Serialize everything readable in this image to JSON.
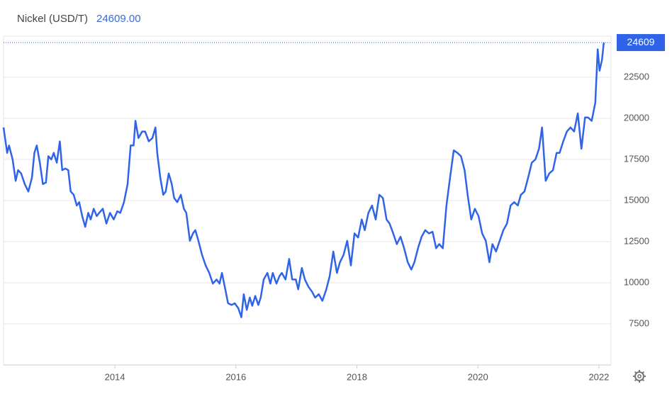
{
  "chart_data": {
    "type": "line",
    "title": "Nickel (USD/T)",
    "current_value_label": "24609.00",
    "last_value_badge": "24609",
    "color": "#2f63e8",
    "grid": true,
    "xlim": [
      2012.16,
      2022.2
    ],
    "xticks": [
      2014,
      2016,
      2018,
      2020,
      2022
    ],
    "ylim": [
      5000,
      25000
    ],
    "yticks": [
      7500,
      10000,
      12500,
      15000,
      17500,
      20000,
      22500
    ],
    "x": [
      2012.16,
      2012.22,
      2012.25,
      2012.31,
      2012.36,
      2012.4,
      2012.45,
      2012.51,
      2012.57,
      2012.63,
      2012.67,
      2012.71,
      2012.76,
      2012.81,
      2012.86,
      2012.9,
      2012.95,
      2012.99,
      2013.04,
      2013.09,
      2013.13,
      2013.18,
      2013.23,
      2013.27,
      2013.32,
      2013.37,
      2013.41,
      2013.46,
      2013.51,
      2013.56,
      2013.6,
      2013.65,
      2013.7,
      2013.74,
      2013.8,
      2013.86,
      2013.92,
      2013.98,
      2014.04,
      2014.09,
      2014.15,
      2014.21,
      2014.26,
      2014.31,
      2014.34,
      2014.39,
      2014.45,
      2014.5,
      2014.56,
      2014.62,
      2014.67,
      2014.7,
      2014.75,
      2014.8,
      2014.84,
      2014.89,
      2014.94,
      2014.98,
      2015.03,
      2015.09,
      2015.14,
      2015.18,
      2015.24,
      2015.29,
      2015.33,
      2015.38,
      2015.44,
      2015.5,
      2015.56,
      2015.62,
      2015.68,
      2015.73,
      2015.77,
      2015.83,
      2015.87,
      2015.93,
      2015.98,
      2016.04,
      2016.09,
      2016.13,
      2016.18,
      2016.23,
      2016.27,
      2016.32,
      2016.37,
      2016.41,
      2016.46,
      2016.52,
      2016.57,
      2016.61,
      2016.67,
      2016.72,
      2016.76,
      2016.82,
      2016.88,
      2016.93,
      2016.99,
      2017.03,
      2017.09,
      2017.14,
      2017.2,
      2017.26,
      2017.31,
      2017.37,
      2017.43,
      2017.49,
      2017.55,
      2017.61,
      2017.67,
      2017.72,
      2017.78,
      2017.84,
      2017.9,
      2017.96,
      2018.02,
      2018.08,
      2018.13,
      2018.19,
      2018.25,
      2018.31,
      2018.37,
      2018.43,
      2018.49,
      2018.54,
      2018.6,
      2018.66,
      2018.72,
      2018.78,
      2018.84,
      2018.9,
      2018.95,
      2019.01,
      2019.07,
      2019.13,
      2019.19,
      2019.25,
      2019.31,
      2019.36,
      2019.42,
      2019.48,
      2019.54,
      2019.6,
      2019.66,
      2019.72,
      2019.78,
      2019.83,
      2019.89,
      2019.95,
      2020.01,
      2020.07,
      2020.13,
      2020.19,
      2020.24,
      2020.3,
      2020.36,
      2020.42,
      2020.48,
      2020.54,
      2020.6,
      2020.66,
      2020.71,
      2020.77,
      2020.83,
      2020.89,
      2020.95,
      2021.01,
      2021.06,
      2021.12,
      2021.18,
      2021.24,
      2021.3,
      2021.35,
      2021.41,
      2021.47,
      2021.53,
      2021.59,
      2021.65,
      2021.71,
      2021.77,
      2021.82,
      2021.88,
      2021.94,
      2021.98,
      2022.01,
      2022.05,
      2022.08
    ],
    "values": [
      19450,
      17900,
      18350,
      17500,
      16200,
      16850,
      16650,
      16000,
      15550,
      16400,
      17900,
      18350,
      17300,
      16000,
      16100,
      17700,
      17500,
      17900,
      17300,
      18600,
      16850,
      16950,
      16850,
      15550,
      15350,
      14700,
      14900,
      14050,
      13400,
      14250,
      13850,
      14500,
      14050,
      14250,
      14500,
      13600,
      14250,
      13850,
      14350,
      14250,
      14900,
      16000,
      18350,
      18350,
      19850,
      18800,
      19200,
      19200,
      18600,
      18800,
      19450,
      17900,
      16400,
      15350,
      15550,
      16650,
      16000,
      15150,
      14900,
      15350,
      14500,
      14250,
      12550,
      13000,
      13200,
      12550,
      11700,
      11050,
      10600,
      9950,
      10200,
      9950,
      10600,
      9500,
      8750,
      8650,
      8750,
      8450,
      7900,
      9300,
      8350,
      9100,
      8600,
      9200,
      8650,
      9100,
      10200,
      10600,
      9950,
      10600,
      9950,
      10400,
      10600,
      10200,
      11450,
      10200,
      10200,
      9600,
      10900,
      10200,
      9750,
      9450,
      9100,
      9300,
      8900,
      9550,
      10400,
      11900,
      10600,
      11250,
      11700,
      12550,
      11050,
      13000,
      12750,
      13850,
      13200,
      14250,
      14700,
      13850,
      15350,
      15150,
      13850,
      13600,
      13000,
      12350,
      12800,
      12100,
      11250,
      10800,
      11250,
      12100,
      12800,
      13200,
      13000,
      13100,
      12100,
      12350,
      12100,
      14700,
      16400,
      18050,
      17900,
      17700,
      16850,
      15350,
      13850,
      14500,
      14050,
      13000,
      12550,
      11250,
      12350,
      11900,
      12550,
      13200,
      13600,
      14700,
      14900,
      14700,
      15350,
      15550,
      16400,
      17300,
      17500,
      18150,
      19450,
      16200,
      16650,
      16850,
      17900,
      17900,
      18600,
      19200,
      19450,
      19200,
      20300,
      18150,
      20050,
      20050,
      19850,
      20950,
      24200,
      22900,
      23550,
      24609
    ]
  }
}
